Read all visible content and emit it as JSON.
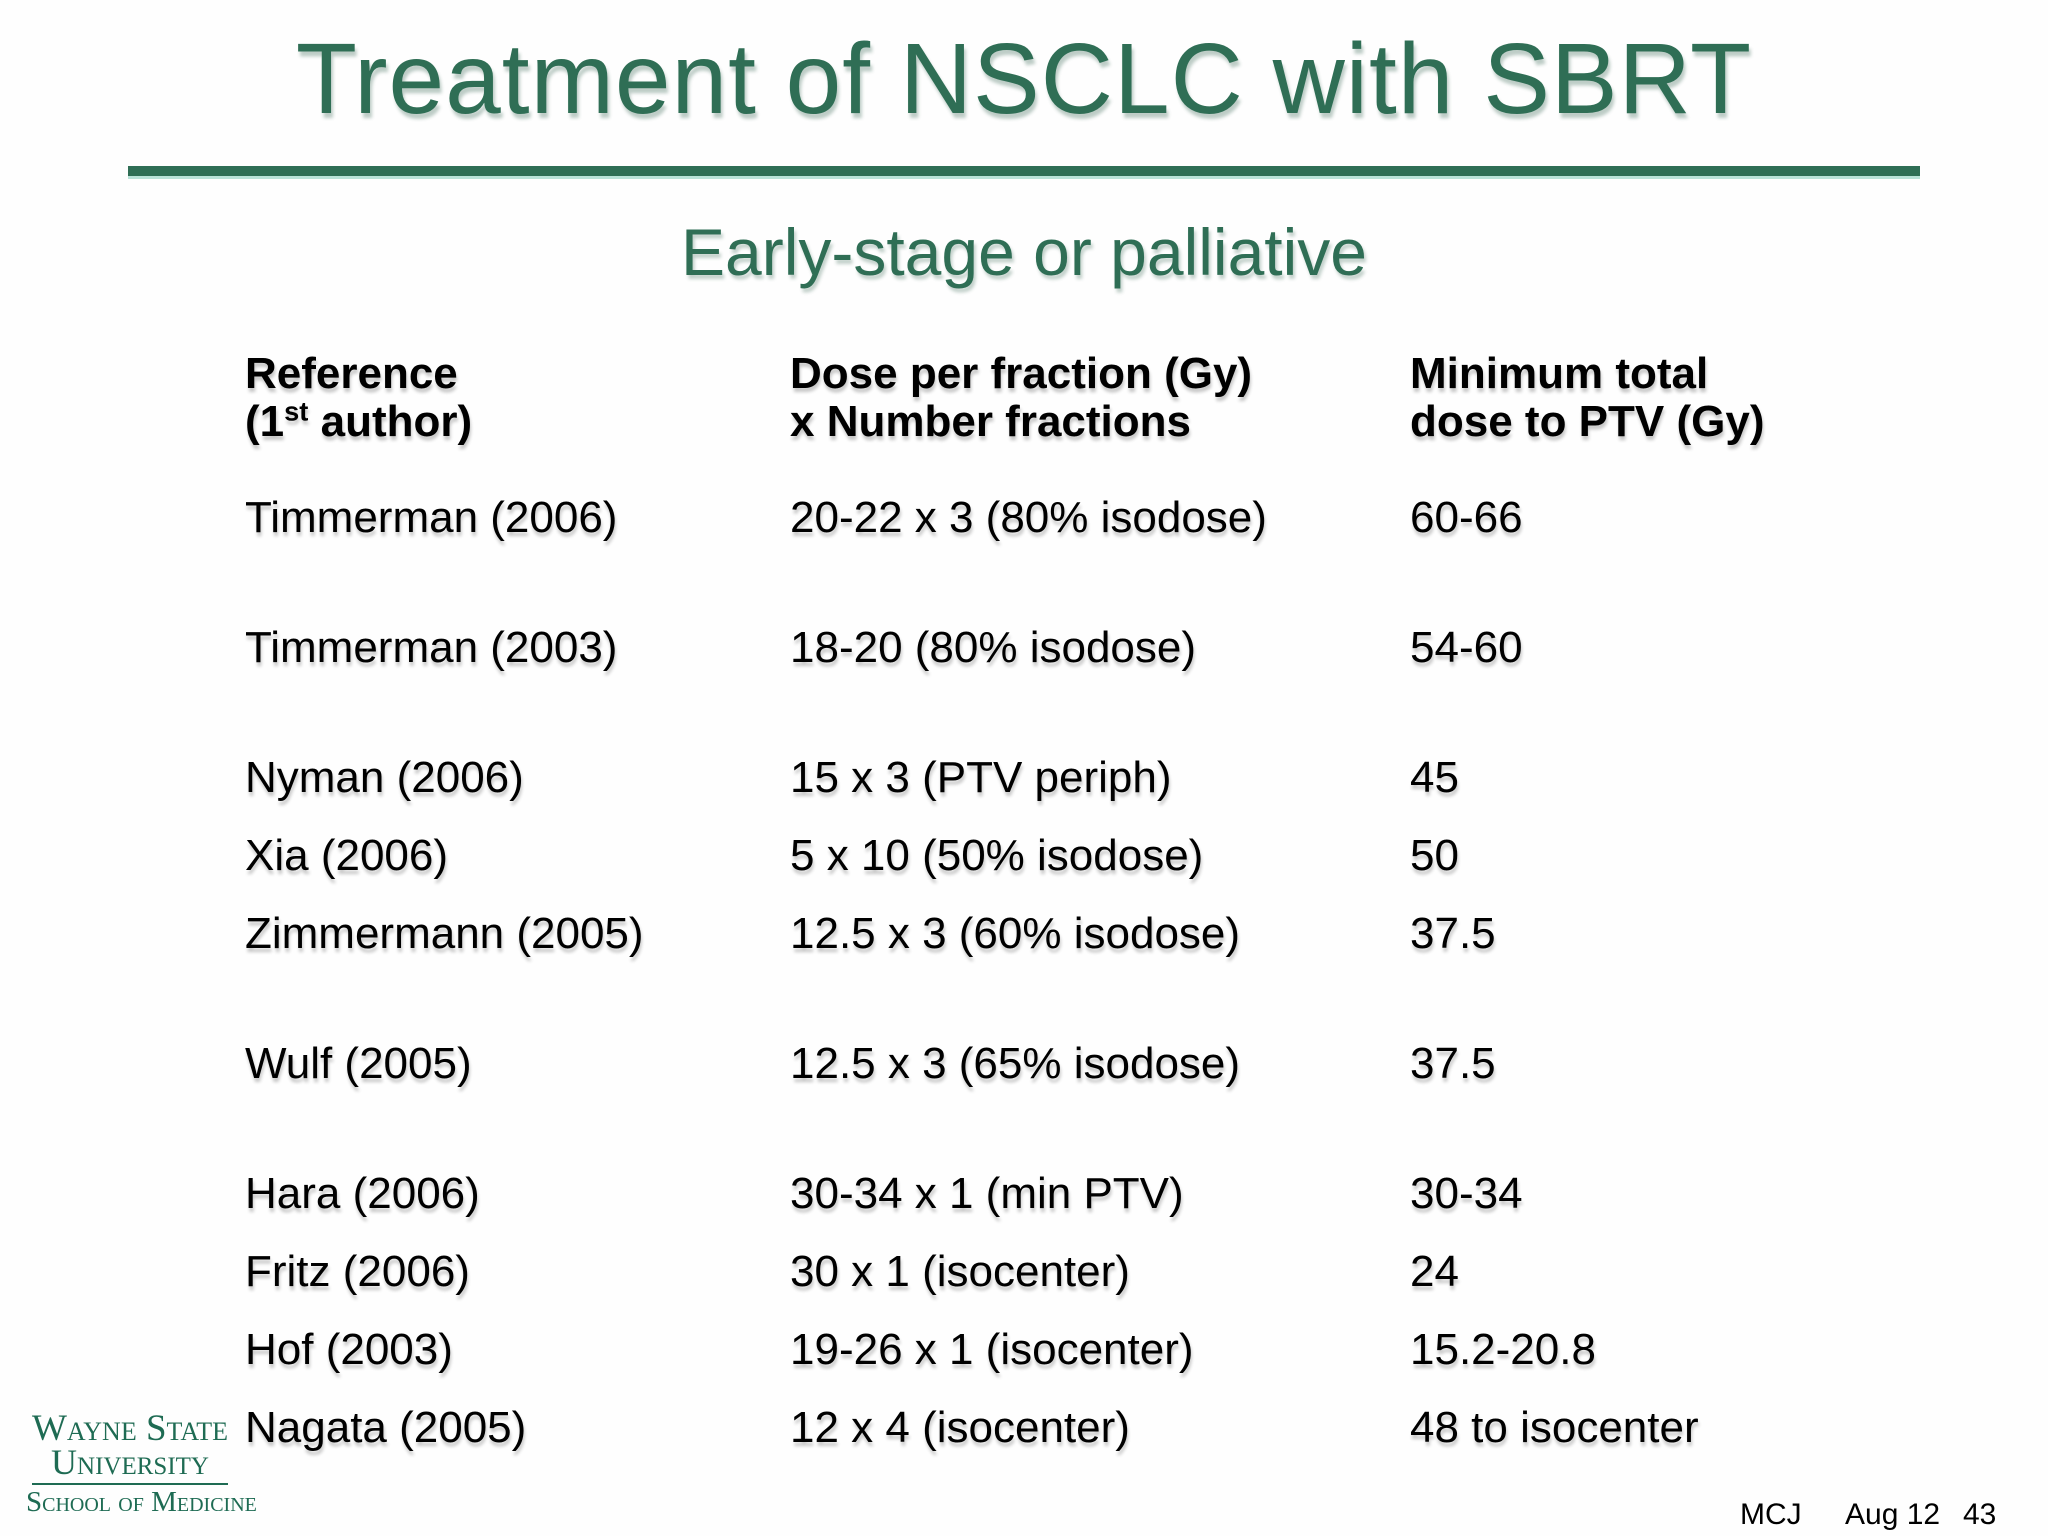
{
  "slide": {
    "title": "Treatment of NSCLC with SBRT",
    "subtitle": "Early-stage or palliative",
    "accent_color": "#2F6E55"
  },
  "table": {
    "headers": {
      "col1_line1": "Reference",
      "col1_line2_pre": "(1",
      "col1_line2_sup": "st",
      "col1_line2_post": " author)",
      "col2_line1": "Dose per fraction (Gy)",
      "col2_line2": "x Number fractions",
      "col3_line1": "Minimum total",
      "col3_line2": "dose to PTV (Gy)"
    },
    "rows": [
      {
        "reference": "Timmerman (2006)",
        "dose": "20-22 x 3 (80% isodose)",
        "min_total": "60-66"
      },
      {
        "reference": "Timmerman (2003)",
        "dose": "18-20 (80% isodose)",
        "min_total": "54-60"
      },
      {
        "reference": "Nyman (2006)",
        "dose": "15 x 3 (PTV periph)",
        "min_total": "45"
      },
      {
        "reference": "Xia (2006)",
        "dose": "5 x 10 (50% isodose)",
        "min_total": "50"
      },
      {
        "reference": "Zimmermann (2005)",
        "dose": "12.5 x 3 (60% isodose)",
        "min_total": "37.5"
      },
      {
        "reference": "Wulf (2005)",
        "dose": "12.5 x 3 (65% isodose)",
        "min_total": "37.5"
      },
      {
        "reference": "Hara (2006)",
        "dose": "30-34 x 1 (min PTV)",
        "min_total": "30-34"
      },
      {
        "reference": "Fritz (2006)",
        "dose": "30 x 1 (isocenter)",
        "min_total": "24"
      },
      {
        "reference": "Hof (2003)",
        "dose": "19-26 x 1 (isocenter)",
        "min_total": "15.2-20.8"
      },
      {
        "reference": "Nagata (2005)",
        "dose": "12 x 4 (isocenter)",
        "min_total": "48 to isocenter"
      }
    ]
  },
  "logo": {
    "line1": "Wayne State",
    "line2": "University",
    "line3": "School of Medicine"
  },
  "footer": {
    "initials": "MCJ",
    "date": "Aug 12",
    "page_number": "43"
  }
}
